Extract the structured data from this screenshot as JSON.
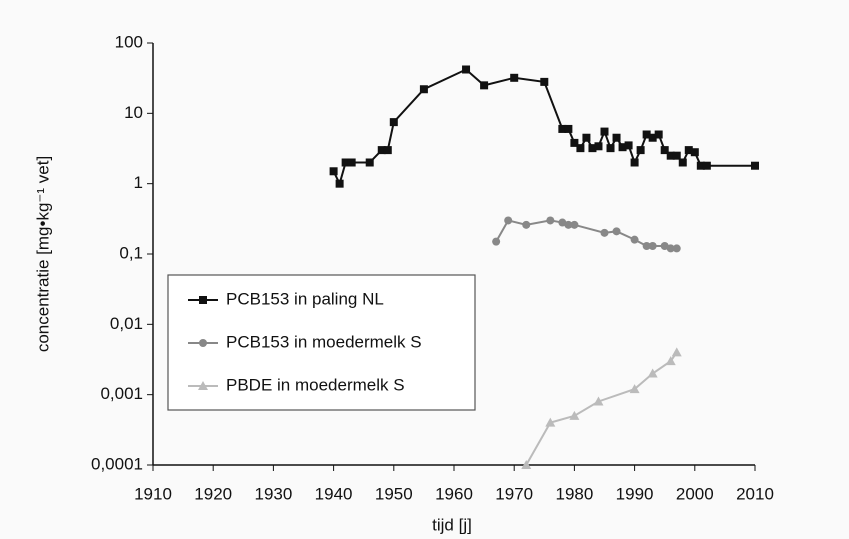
{
  "chart_data": {
    "type": "line",
    "ylog": true,
    "xlabel": "tijd [j]",
    "ylabel": "concentratie [mg•kg⁻¹ vet]",
    "xlim": [
      1910,
      2010
    ],
    "xticks": [
      1910,
      1920,
      1930,
      1940,
      1950,
      1960,
      1970,
      1980,
      1990,
      2000,
      2010
    ],
    "ylim": [
      0.0001,
      100
    ],
    "yticks": [
      100,
      10,
      1,
      {
        "value": 0.1,
        "label": "0,1"
      },
      {
        "value": 0.01,
        "label": "0,01"
      },
      {
        "value": 0.001,
        "label": "0,001"
      },
      {
        "value": 0.0001,
        "label": "0,0001"
      }
    ],
    "legend": "lower-left",
    "series": [
      {
        "name": "PCB153 in paling NL",
        "color": "#111111",
        "marker": "square",
        "x": [
          1940,
          1941,
          1942,
          1943,
          1946,
          1948,
          1949,
          1950,
          1955,
          1962,
          1965,
          1970,
          1975,
          1978,
          1979,
          1980,
          1981,
          1982,
          1983,
          1984,
          1985,
          1986,
          1987,
          1988,
          1989,
          1990,
          1991,
          1992,
          1993,
          1994,
          1995,
          1996,
          1997,
          1998,
          1999,
          2000,
          2001,
          2002,
          2010
        ],
        "values": [
          1.5,
          1,
          2,
          2,
          2,
          3,
          3,
          7.5,
          22,
          42,
          25,
          32,
          28,
          6,
          6,
          3.8,
          3.2,
          4.5,
          3.2,
          3.4,
          5.5,
          3.2,
          4.5,
          3.3,
          3.5,
          2,
          3,
          5,
          4.5,
          5,
          3,
          2.5,
          2.5,
          2,
          3,
          2.8,
          1.8,
          1.8,
          1.8
        ]
      },
      {
        "name": "PCB153 in moedermelk S",
        "color": "#888888",
        "marker": "circle",
        "x": [
          1967,
          1969,
          1972,
          1976,
          1978,
          1979,
          1980,
          1985,
          1987,
          1990,
          1992,
          1993,
          1995,
          1996,
          1997
        ],
        "values": [
          0.15,
          0.3,
          0.26,
          0.3,
          0.28,
          0.26,
          0.26,
          0.2,
          0.21,
          0.16,
          0.13,
          0.13,
          0.13,
          0.12,
          0.12
        ]
      },
      {
        "name": "PBDE in moedermelk S",
        "color": "#bbbbbb",
        "marker": "triangle",
        "x": [
          1972,
          1976,
          1980,
          1984,
          1990,
          1993,
          1996,
          1997
        ],
        "values": [
          0.0001,
          0.0004,
          0.0005,
          0.0008,
          0.0012,
          0.002,
          0.003,
          0.004
        ]
      }
    ]
  }
}
